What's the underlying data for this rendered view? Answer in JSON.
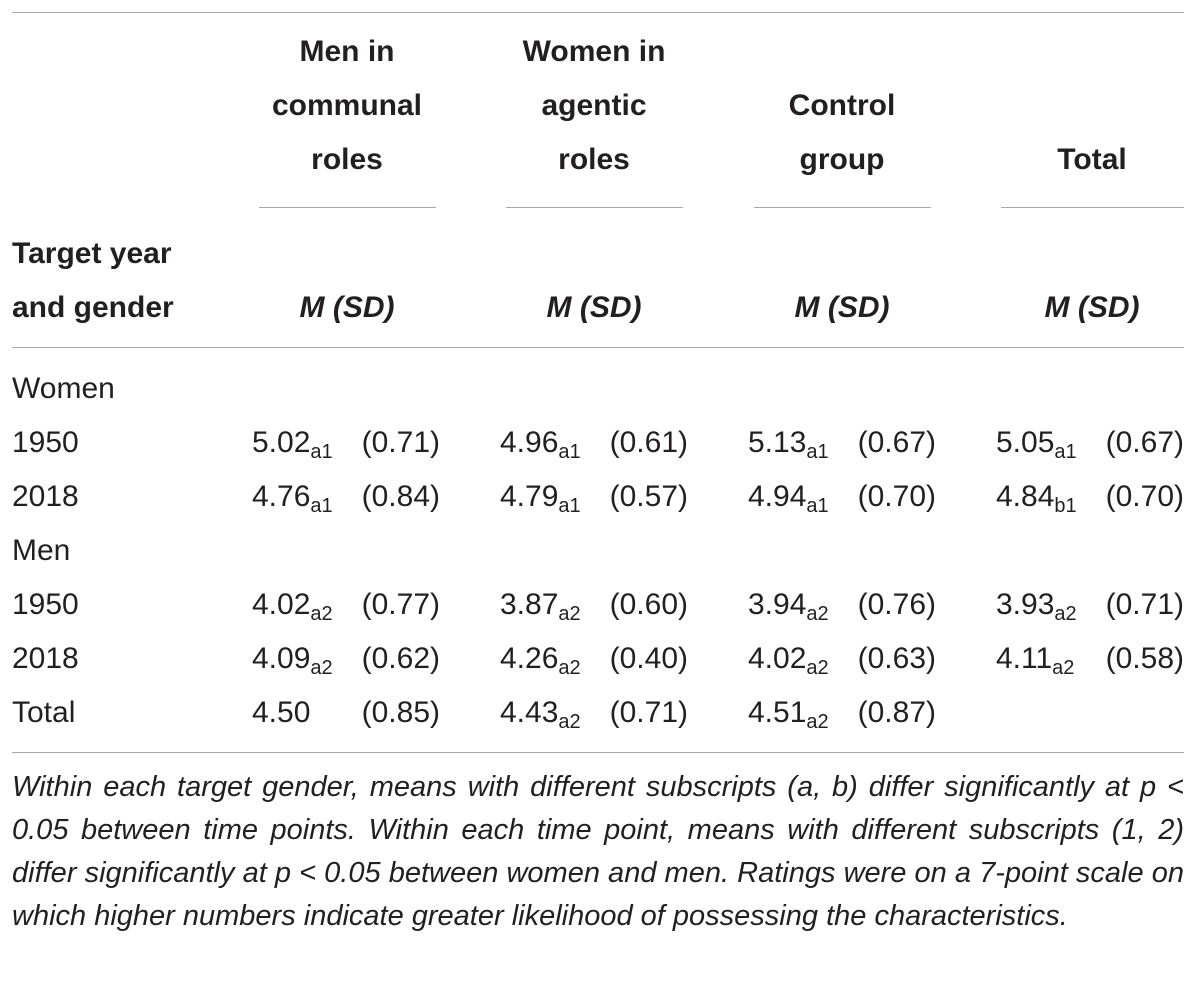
{
  "columns": [
    {
      "title": "Men in communal roles",
      "lines": [
        "Men in",
        "communal",
        "roles"
      ],
      "stat": "M (SD)"
    },
    {
      "title": "Women in agentic roles",
      "lines": [
        "Women in",
        "agentic",
        "roles"
      ],
      "stat": "M (SD)"
    },
    {
      "title": "Control group",
      "lines": [
        "Control",
        "group"
      ],
      "stat": "M (SD)"
    },
    {
      "title": "Total",
      "lines": [
        "Total"
      ],
      "stat": "M (SD)"
    }
  ],
  "row_header": {
    "line1": "Target year",
    "line2": "and gender"
  },
  "groups": [
    {
      "label": "Women",
      "rows": [
        {
          "label": "1950",
          "cells": [
            {
              "mean": "5.02",
              "sub": "a1",
              "sd": "(0.71)"
            },
            {
              "mean": "4.96",
              "sub": "a1",
              "sd": "(0.61)"
            },
            {
              "mean": "5.13",
              "sub": "a1",
              "sd": "(0.67)"
            },
            {
              "mean": "5.05",
              "sub": "a1",
              "sd": "(0.67)"
            }
          ]
        },
        {
          "label": "2018",
          "cells": [
            {
              "mean": "4.76",
              "sub": "a1",
              "sd": "(0.84)"
            },
            {
              "mean": "4.79",
              "sub": "a1",
              "sd": "(0.57)"
            },
            {
              "mean": "4.94",
              "sub": "a1",
              "sd": "(0.70)"
            },
            {
              "mean": "4.84",
              "sub": "b1",
              "sd": "(0.70)"
            }
          ]
        }
      ]
    },
    {
      "label": "Men",
      "rows": [
        {
          "label": "1950",
          "cells": [
            {
              "mean": "4.02",
              "sub": "a2",
              "sd": "(0.77)"
            },
            {
              "mean": "3.87",
              "sub": "a2",
              "sd": "(0.60)"
            },
            {
              "mean": "3.94",
              "sub": "a2",
              "sd": "(0.76)"
            },
            {
              "mean": "3.93",
              "sub": "a2",
              "sd": "(0.71)"
            }
          ]
        },
        {
          "label": "2018",
          "cells": [
            {
              "mean": "4.09",
              "sub": "a2",
              "sd": "(0.62)"
            },
            {
              "mean": "4.26",
              "sub": "a2",
              "sd": "(0.40)"
            },
            {
              "mean": "4.02",
              "sub": "a2",
              "sd": "(0.63)"
            },
            {
              "mean": "4.11",
              "sub": "a2",
              "sd": "(0.58)"
            }
          ]
        }
      ]
    }
  ],
  "total_row": {
    "label": "Total",
    "cells": [
      {
        "mean": "4.50",
        "sub": "",
        "sd": "(0.85)"
      },
      {
        "mean": "4.43",
        "sub": "a2",
        "sd": "(0.71)"
      },
      {
        "mean": "4.51",
        "sub": "a2",
        "sd": "(0.87)"
      }
    ]
  },
  "note": "Within each target gender, means with different subscripts (a, b) differ significantly at p < 0.05 between time points. Within each time point, means with different subscripts (1, 2) differ significantly at p < 0.05 between women and men. Ratings were on a 7-point scale on which higher numbers indicate greater likelihood of possessing the characteristics."
}
